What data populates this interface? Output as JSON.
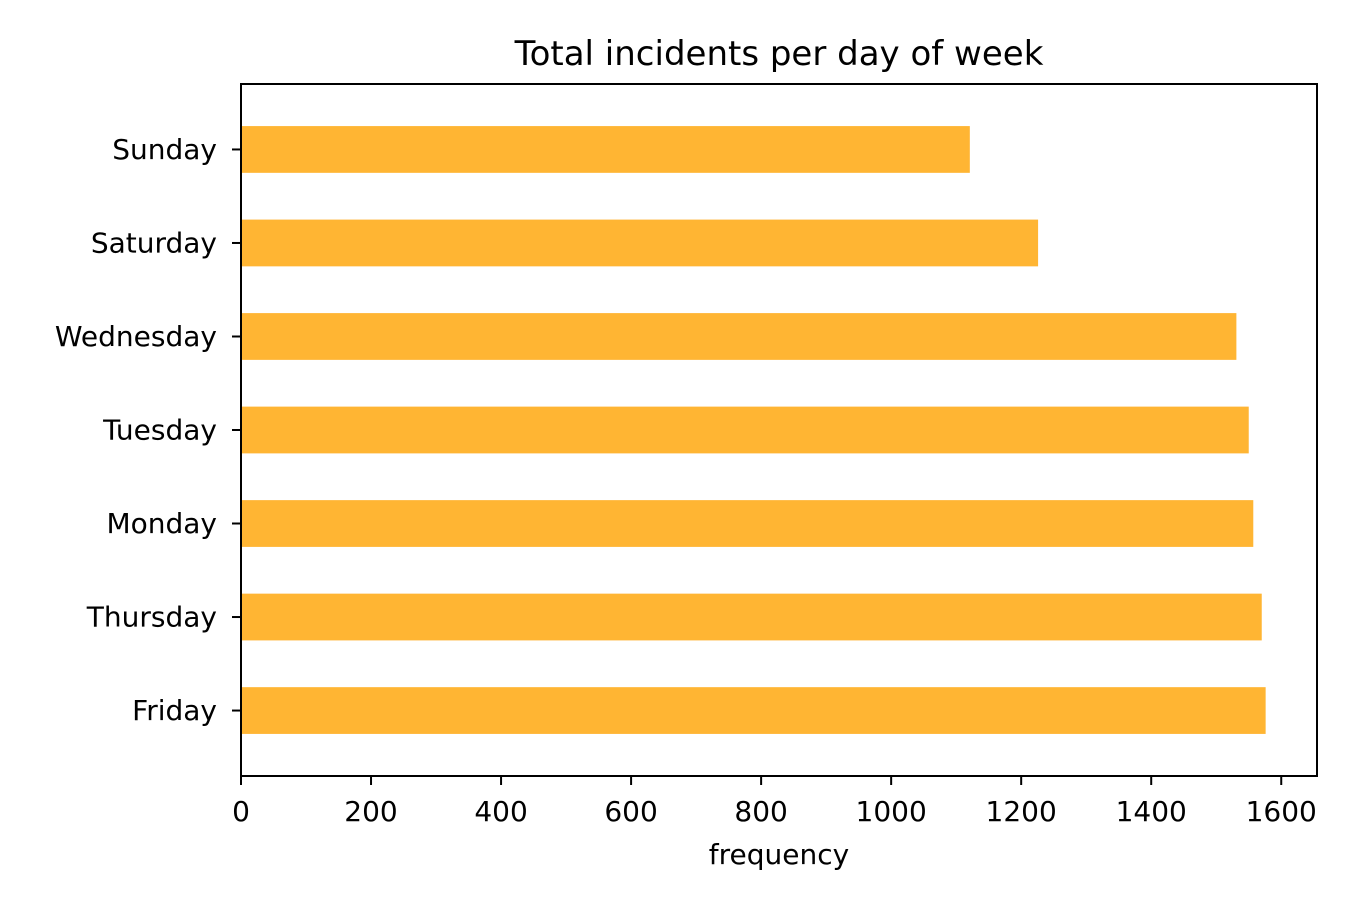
{
  "chart_data": {
    "type": "bar",
    "orientation": "horizontal",
    "title": "Total incidents per day of week",
    "xlabel": "frequency",
    "ylabel": "",
    "categories": [
      "Friday",
      "Thursday",
      "Monday",
      "Tuesday",
      "Wednesday",
      "Saturday",
      "Sunday"
    ],
    "values": [
      1576,
      1570,
      1557,
      1550,
      1531,
      1226,
      1121
    ],
    "xlim": [
      0,
      1655
    ],
    "xticks": [
      "0",
      "200",
      "400",
      "600",
      "800",
      "1000",
      "1200",
      "1400",
      "1600"
    ],
    "grid": false,
    "legend": "none",
    "bar_color": "#ffb533"
  }
}
